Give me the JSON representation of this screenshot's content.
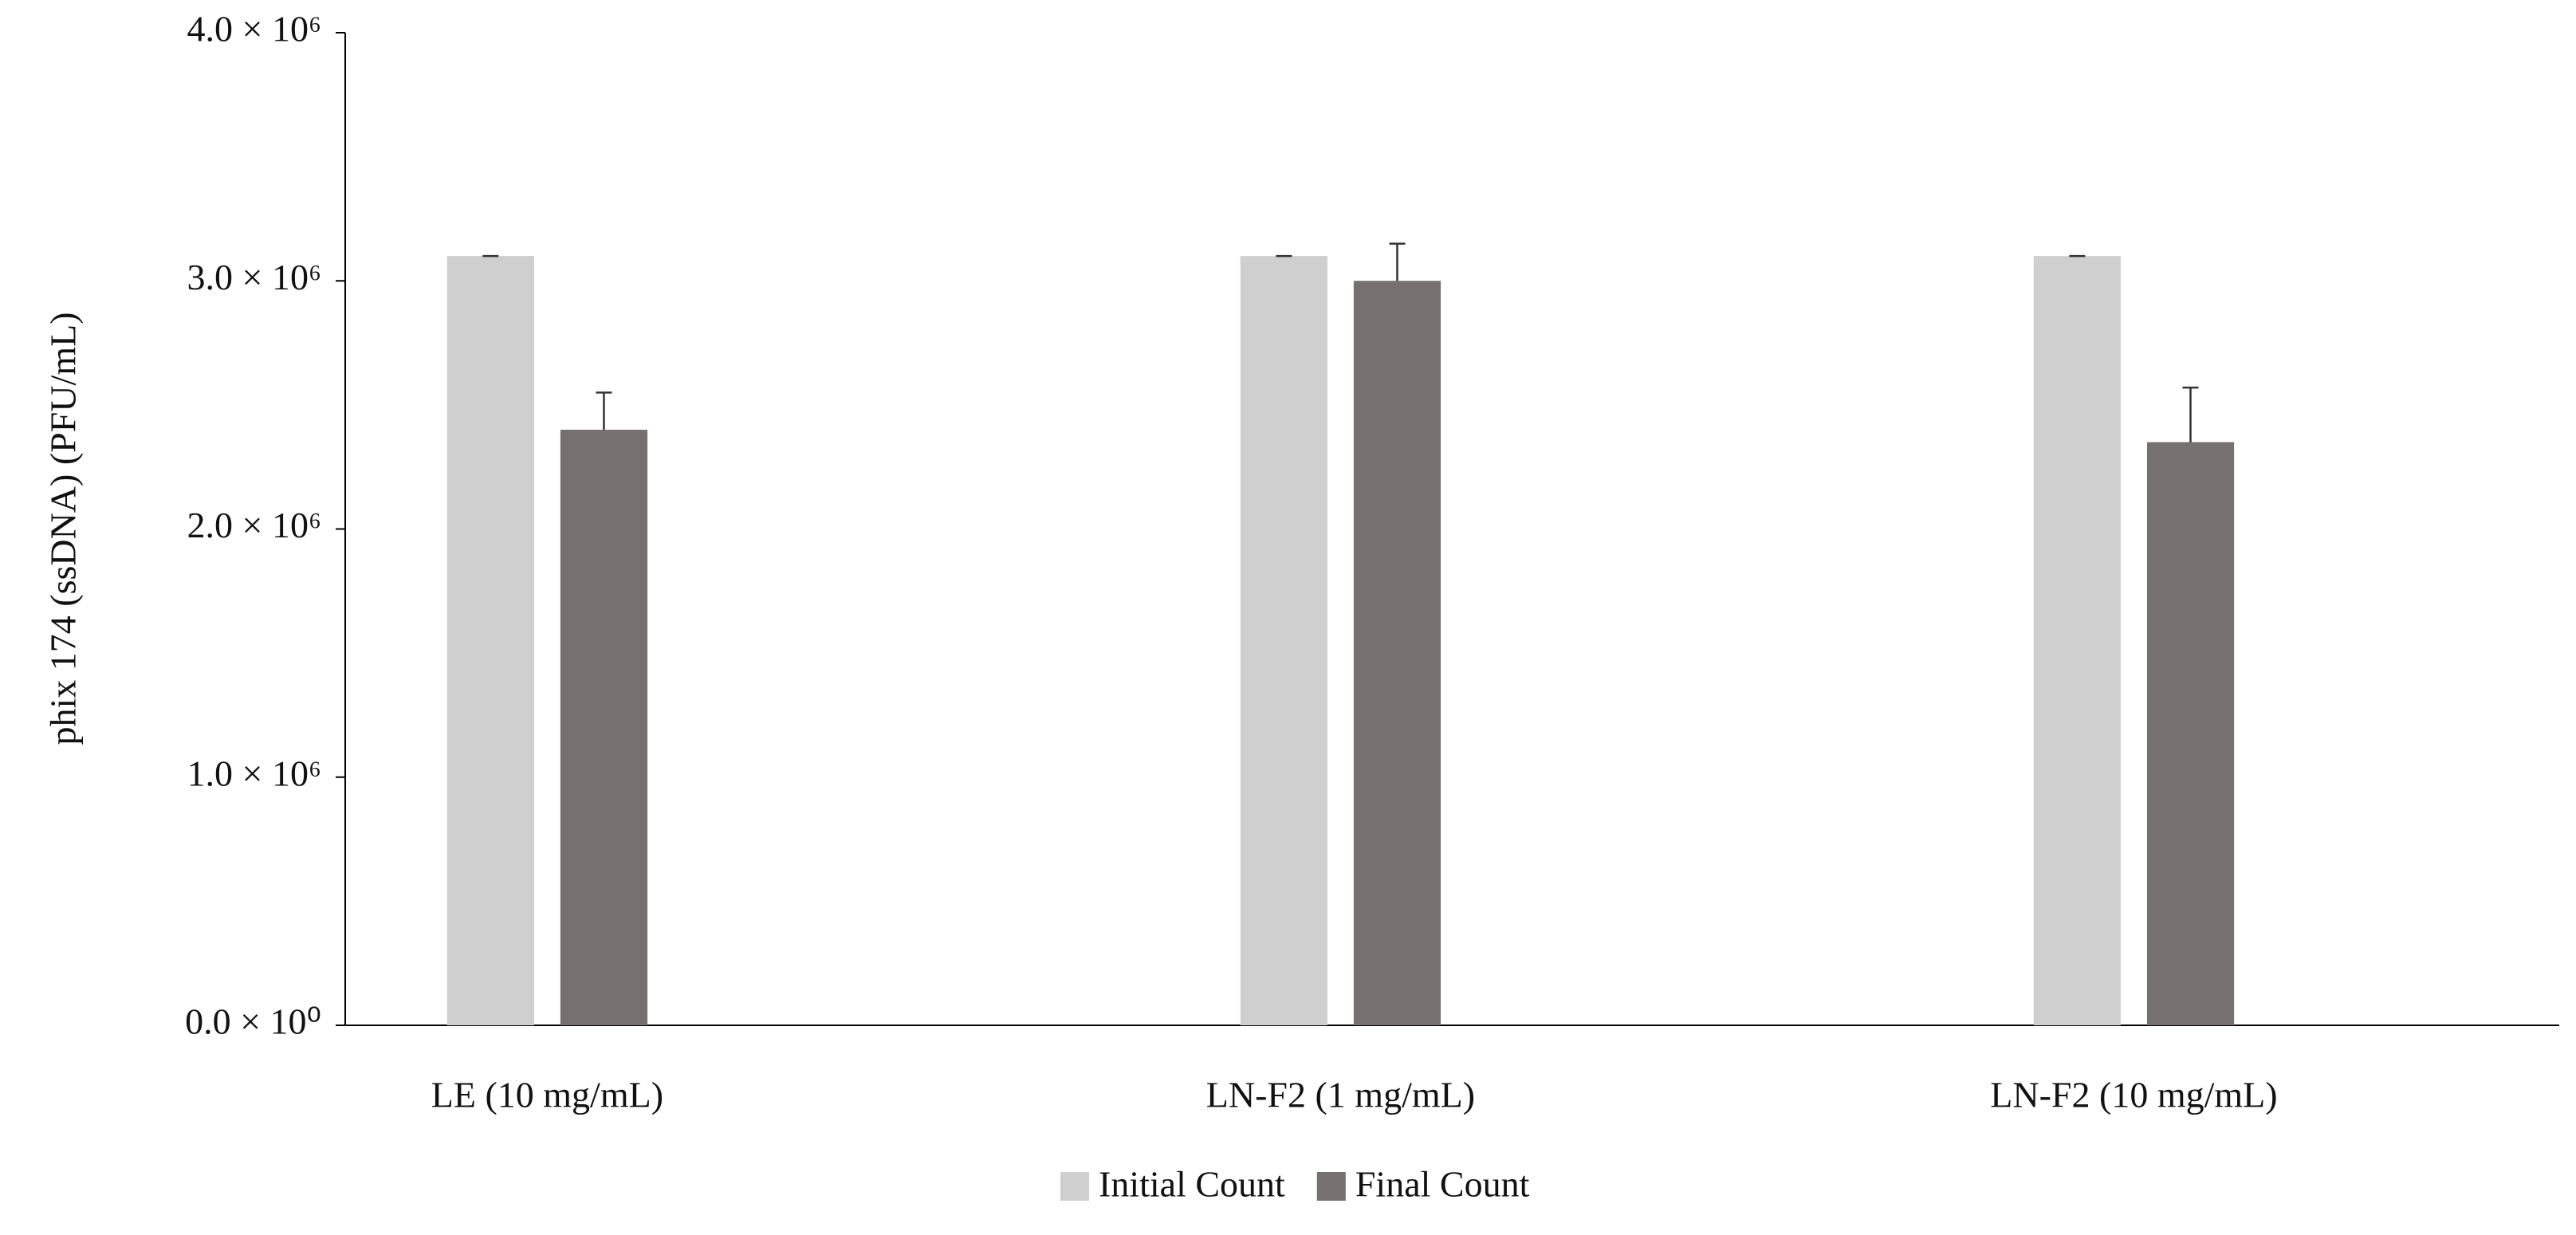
{
  "chart_data": {
    "type": "bar",
    "y_label": "phix 174 (ssDNA) (PFU/mL)",
    "categories": [
      "LE (10 mg/mL)",
      "LN-F2 (1 mg/mL)",
      "LN-F2 (10 mg/mL)"
    ],
    "series": [
      {
        "name": "Initial Count",
        "color": "#d0cfcf",
        "values": [
          3100000,
          3100000,
          3100000
        ],
        "errors": [
          0,
          0,
          0
        ]
      },
      {
        "name": "Final Count",
        "color": "#767170",
        "values": [
          2400000,
          3000000,
          2350000
        ],
        "errors": [
          150000,
          150000,
          220000
        ]
      }
    ],
    "ylim": [
      0,
      4000000
    ],
    "yticks": [
      {
        "value": 0,
        "label": "0.0 × 10⁰"
      },
      {
        "value": 1000000,
        "label": "1.0 × 10⁶"
      },
      {
        "value": 2000000,
        "label": "2.0 × 10⁶"
      },
      {
        "value": 3000000,
        "label": "3.0 × 10⁶"
      },
      {
        "value": 4000000,
        "label": "4.0 × 10⁶"
      }
    ],
    "legend": "bottom"
  }
}
